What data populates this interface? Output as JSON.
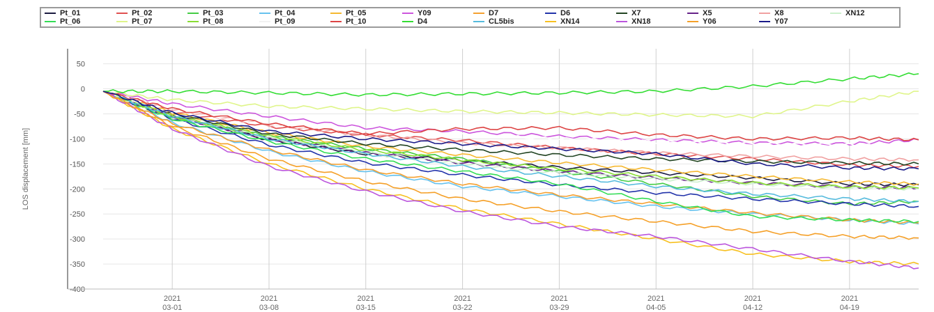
{
  "chart_data": {
    "type": "line",
    "title": "",
    "xlabel": "",
    "ylabel": "LOS displacement [mm]",
    "xlim": [
      "2021-02-24",
      "2021-04-24"
    ],
    "ylim": [
      -400,
      80
    ],
    "yticks": [
      50,
      0,
      -50,
      -100,
      -150,
      -200,
      -250,
      -300,
      -350,
      -400
    ],
    "xticks": [
      {
        "date": "2021-03-01",
        "year": "2021",
        "md": "03-01"
      },
      {
        "date": "2021-03-08",
        "year": "2021",
        "md": "03-08"
      },
      {
        "date": "2021-03-15",
        "year": "2021",
        "md": "03-15"
      },
      {
        "date": "2021-03-22",
        "year": "2021",
        "md": "03-22"
      },
      {
        "date": "2021-03-29",
        "year": "2021",
        "md": "03-29"
      },
      {
        "date": "2021-04-05",
        "year": "2021",
        "md": "04-05"
      },
      {
        "date": "2021-04-12",
        "year": "2021",
        "md": "04-12"
      },
      {
        "date": "2021-04-19",
        "year": "2021",
        "md": "04-19"
      }
    ],
    "grid": true,
    "legend_position": "top",
    "x": [
      "2021-02-24",
      "2021-03-01",
      "2021-03-08",
      "2021-03-15",
      "2021-03-22",
      "2021-03-29",
      "2021-04-05",
      "2021-04-12",
      "2021-04-19",
      "2021-04-24"
    ],
    "series": [
      {
        "name": "Pt_01",
        "color": "#1a1a40",
        "values": [
          -5,
          -55,
          -102,
          -130,
          -143,
          -157,
          -168,
          -178,
          -190,
          -192
        ]
      },
      {
        "name": "Pt_02",
        "color": "#e05050",
        "values": [
          -5,
          -45,
          -75,
          -92,
          -103,
          -118,
          -130,
          -140,
          -152,
          -155
        ]
      },
      {
        "name": "Pt_03",
        "color": "#44cc44",
        "values": [
          -5,
          -58,
          -95,
          -120,
          -140,
          -165,
          -190,
          -215,
          -230,
          -225
        ]
      },
      {
        "name": "Pt_04",
        "color": "#66c2ee",
        "values": [
          -5,
          -68,
          -125,
          -165,
          -195,
          -215,
          -235,
          -250,
          -262,
          -270
        ]
      },
      {
        "name": "Pt_05",
        "color": "#f5b830",
        "values": [
          -5,
          -48,
          -88,
          -115,
          -132,
          -148,
          -162,
          -175,
          -186,
          -190
        ]
      },
      {
        "name": "Y09",
        "color": "#cc55dd",
        "values": [
          -5,
          -30,
          -55,
          -78,
          -85,
          -95,
          -102,
          -108,
          -110,
          -102
        ]
      },
      {
        "name": "D7",
        "color": "#f5a030",
        "values": [
          -5,
          -70,
          -122,
          -162,
          -190,
          -212,
          -230,
          -248,
          -262,
          -268
        ]
      },
      {
        "name": "D6",
        "color": "#2233aa",
        "values": [
          -5,
          -60,
          -112,
          -148,
          -172,
          -192,
          -208,
          -220,
          -230,
          -235
        ]
      },
      {
        "name": "X7",
        "color": "#224422",
        "values": [
          -5,
          -50,
          -90,
          -110,
          -122,
          -132,
          -140,
          -145,
          -148,
          -150
        ]
      },
      {
        "name": "X5",
        "color": "#662288",
        "values": [
          -5,
          -55,
          -100,
          -128,
          -148,
          -165,
          -178,
          -188,
          -196,
          -198
        ]
      },
      {
        "name": "X8",
        "color": "#f0a0a0",
        "values": [
          -5,
          -42,
          -72,
          -92,
          -108,
          -118,
          -128,
          -135,
          -140,
          -142
        ]
      },
      {
        "name": "XN12",
        "color": "#ccf0cc",
        "values": [
          -5,
          -56,
          -98,
          -128,
          -150,
          -168,
          -180,
          -190,
          -198,
          -200
        ]
      },
      {
        "name": "Pt_06",
        "color": "#33dd55",
        "values": [
          -5,
          -60,
          -105,
          -140,
          -165,
          -190,
          -225,
          -255,
          -262,
          -265
        ]
      },
      {
        "name": "Pt_07",
        "color": "#dff58a",
        "values": [
          -5,
          -22,
          -35,
          -40,
          -45,
          -48,
          -52,
          -55,
          -25,
          -5
        ]
      },
      {
        "name": "Pt_08",
        "color": "#88dd33",
        "values": [
          -5,
          -55,
          -95,
          -122,
          -142,
          -160,
          -175,
          -188,
          -196,
          -198
        ]
      },
      {
        "name": "Pt_09",
        "color": "#ffffff",
        "values": [
          -5,
          -45,
          -70,
          -85,
          -92,
          -100,
          -106,
          -110,
          -112,
          -115
        ]
      },
      {
        "name": "Pt_10",
        "color": "#dd4444",
        "values": [
          -5,
          -40,
          -70,
          -90,
          -80,
          -78,
          -92,
          -100,
          -98,
          -102
        ]
      },
      {
        "name": "D4",
        "color": "#33dd33",
        "values": [
          -5,
          -5,
          -8,
          -12,
          -10,
          -8,
          -5,
          5,
          20,
          30
        ]
      },
      {
        "name": "CL5bis",
        "color": "#55bbdd",
        "values": [
          -5,
          -55,
          -100,
          -130,
          -155,
          -175,
          -195,
          -210,
          -220,
          -225
        ]
      },
      {
        "name": "XN14",
        "color": "#f7c020",
        "values": [
          -5,
          -80,
          -150,
          -200,
          -240,
          -270,
          -300,
          -330,
          -345,
          -350
        ]
      },
      {
        "name": "XN18",
        "color": "#bb55dd",
        "values": [
          -5,
          -80,
          -155,
          -205,
          -245,
          -275,
          -295,
          -320,
          -345,
          -358
        ]
      },
      {
        "name": "Y06",
        "color": "#f5a028",
        "values": [
          -5,
          -75,
          -140,
          -185,
          -220,
          -245,
          -265,
          -285,
          -295,
          -298
        ]
      },
      {
        "name": "Y07",
        "color": "#1a1a88",
        "values": [
          -5,
          -48,
          -85,
          -100,
          -110,
          -120,
          -130,
          -150,
          -158,
          -160
        ]
      }
    ]
  }
}
